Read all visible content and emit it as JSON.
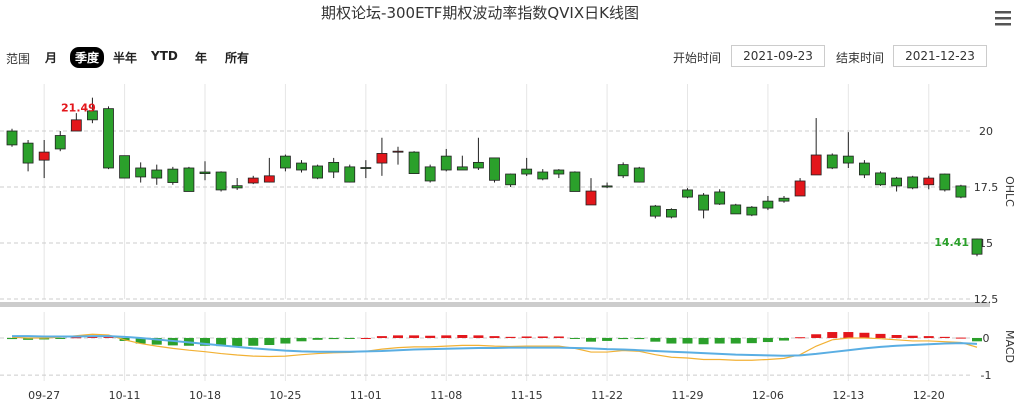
{
  "title": "期权论坛-300ETF期权波动率指数QVIX日K线图",
  "controls": {
    "range_label": "范围",
    "ranges": [
      "月",
      "季度",
      "半年",
      "YTD",
      "年",
      "所有"
    ],
    "selected": 1,
    "start_label": "开始时间",
    "start_value": "2021-09-23",
    "end_label": "结束时间",
    "end_value": "2021-12-23"
  },
  "chart_data": [
    {
      "type": "candlestick",
      "y_label": "OHLC",
      "categories": [
        null,
        null,
        "09-27",
        null,
        null,
        null,
        null,
        "10-11",
        null,
        null,
        null,
        null,
        "10-18",
        null,
        null,
        null,
        null,
        "10-25",
        null,
        null,
        null,
        null,
        "11-01",
        null,
        null,
        null,
        null,
        "11-08",
        null,
        null,
        null,
        null,
        "11-15",
        null,
        null,
        null,
        null,
        "11-22",
        null,
        null,
        null,
        null,
        "11-29",
        null,
        null,
        null,
        null,
        "12-06",
        null,
        null,
        null,
        null,
        "12-13",
        null,
        null,
        null,
        null,
        "12-20",
        null,
        null,
        null
      ],
      "open": [
        20.0,
        19.46,
        18.7,
        19.8,
        20.0,
        20.9,
        21.0,
        18.9,
        18.35,
        18.26,
        18.3,
        18.35,
        18.17,
        18.17,
        17.56,
        17.68,
        17.72,
        18.88,
        18.57,
        18.44,
        18.6,
        18.4,
        18.37,
        18.57,
        19.06,
        19.06,
        18.4,
        18.88,
        18.4,
        18.6,
        18.8,
        18.08,
        18.3,
        18.17,
        18.26,
        18.17,
        16.7,
        17.55,
        18.5,
        18.35,
        16.65,
        16.5,
        17.37,
        17.14,
        17.28,
        16.7,
        16.6,
        16.87,
        17.0,
        17.1,
        18.04,
        18.93,
        18.88,
        18.57,
        18.13,
        17.9,
        17.95,
        17.6,
        18.08,
        17.55,
        15.18
      ],
      "high": [
        20.1,
        19.6,
        19.6,
        20.0,
        20.8,
        21.49,
        21.1,
        18.9,
        18.6,
        18.5,
        18.4,
        18.4,
        18.65,
        18.2,
        17.9,
        18.0,
        18.8,
        18.95,
        18.7,
        18.5,
        18.8,
        18.5,
        18.7,
        19.7,
        19.3,
        19.1,
        18.5,
        19.2,
        18.9,
        19.7,
        18.8,
        18.1,
        18.8,
        18.3,
        18.3,
        18.2,
        17.9,
        17.7,
        18.6,
        18.4,
        16.7,
        16.55,
        17.45,
        17.23,
        17.4,
        16.75,
        16.65,
        17.1,
        17.1,
        17.9,
        20.58,
        19.0,
        19.95,
        18.7,
        18.2,
        17.95,
        18.0,
        18.0,
        18.1,
        17.6,
        15.2
      ],
      "low": [
        19.3,
        18.2,
        17.9,
        19.1,
        20.0,
        20.35,
        18.3,
        17.9,
        17.7,
        17.6,
        17.6,
        17.3,
        17.8,
        17.3,
        17.37,
        17.63,
        17.7,
        18.2,
        18.15,
        17.85,
        17.9,
        17.7,
        17.9,
        18.0,
        18.5,
        18.1,
        17.7,
        18.2,
        18.26,
        18.26,
        17.7,
        17.5,
        17.99,
        17.8,
        17.9,
        17.3,
        16.7,
        17.45,
        17.9,
        17.7,
        16.1,
        16.1,
        17.0,
        16.1,
        16.7,
        16.3,
        16.2,
        16.47,
        16.8,
        17.1,
        18.04,
        18.3,
        18.35,
        17.9,
        17.55,
        17.3,
        17.4,
        17.4,
        17.3,
        17.0,
        14.41
      ],
      "close": [
        19.38,
        18.57,
        19.06,
        19.2,
        20.5,
        20.5,
        18.35,
        17.9,
        17.95,
        17.9,
        17.7,
        17.3,
        18.1,
        17.37,
        17.46,
        17.9,
        18.0,
        18.35,
        18.26,
        17.9,
        18.17,
        17.72,
        18.35,
        19.0,
        19.1,
        18.1,
        17.77,
        18.26,
        18.26,
        18.35,
        17.8,
        17.6,
        18.08,
        17.86,
        18.08,
        17.3,
        17.32,
        17.5,
        18.0,
        17.72,
        16.2,
        16.16,
        17.05,
        16.47,
        16.74,
        16.3,
        16.25,
        16.56,
        16.87,
        17.77,
        18.93,
        18.35,
        18.57,
        18.04,
        17.6,
        17.55,
        17.46,
        17.9,
        17.37,
        17.05,
        14.5
      ],
      "up_color": "#e3161b",
      "down_color": "#2ba02b",
      "annotations": [
        "21.49",
        "14.41"
      ],
      "ylim": [
        12.5,
        22.1
      ],
      "yticks": [
        12.5,
        15,
        17.5,
        20
      ],
      "grid": true
    },
    {
      "type": "macd",
      "y_label": "MACD",
      "bars": {
        "up_color": "#e3161b",
        "down_color": "#2ba02b",
        "values": [
          -0.03,
          -0.05,
          -0.04,
          -0.02,
          0.02,
          0.05,
          0.03,
          -0.08,
          -0.15,
          -0.18,
          -0.2,
          -0.21,
          -0.21,
          -0.22,
          -0.22,
          -0.21,
          -0.19,
          -0.15,
          -0.09,
          -0.05,
          -0.03,
          -0.02,
          0.0,
          0.05,
          0.07,
          0.07,
          0.06,
          0.07,
          0.08,
          0.07,
          0.05,
          0.03,
          0.04,
          0.04,
          0.04,
          -0.01,
          -0.1,
          -0.08,
          -0.03,
          -0.03,
          -0.1,
          -0.15,
          -0.15,
          -0.17,
          -0.15,
          -0.15,
          -0.14,
          -0.11,
          -0.07,
          0.02,
          0.1,
          0.16,
          0.16,
          0.14,
          0.11,
          0.08,
          0.06,
          0.05,
          0.03,
          0.01,
          -0.09
        ]
      },
      "lines": [
        {
          "color": "#f2b134",
          "values": [
            0.02,
            0.0,
            0.0,
            0.02,
            0.06,
            0.1,
            0.08,
            -0.05,
            -0.15,
            -0.22,
            -0.28,
            -0.33,
            -0.37,
            -0.42,
            -0.46,
            -0.49,
            -0.5,
            -0.49,
            -0.45,
            -0.42,
            -0.4,
            -0.39,
            -0.36,
            -0.3,
            -0.26,
            -0.24,
            -0.24,
            -0.22,
            -0.2,
            -0.2,
            -0.22,
            -0.23,
            -0.22,
            -0.22,
            -0.22,
            -0.28,
            -0.38,
            -0.38,
            -0.34,
            -0.36,
            -0.45,
            -0.52,
            -0.54,
            -0.58,
            -0.58,
            -0.6,
            -0.6,
            -0.58,
            -0.55,
            -0.45,
            -0.22,
            -0.05,
            0.0,
            0.0,
            -0.02,
            -0.05,
            -0.08,
            -0.08,
            -0.1,
            -0.12,
            -0.25
          ]
        },
        {
          "color": "#5aaee3",
          "values": [
            0.05,
            0.05,
            0.04,
            0.04,
            0.04,
            0.05,
            0.05,
            0.03,
            0.0,
            -0.04,
            -0.08,
            -0.12,
            -0.16,
            -0.2,
            -0.24,
            -0.28,
            -0.31,
            -0.34,
            -0.36,
            -0.37,
            -0.37,
            -0.37,
            -0.36,
            -0.35,
            -0.33,
            -0.31,
            -0.3,
            -0.29,
            -0.28,
            -0.27,
            -0.27,
            -0.26,
            -0.26,
            -0.26,
            -0.26,
            -0.27,
            -0.28,
            -0.3,
            -0.31,
            -0.33,
            -0.35,
            -0.37,
            -0.39,
            -0.41,
            -0.43,
            -0.45,
            -0.46,
            -0.47,
            -0.48,
            -0.47,
            -0.43,
            -0.38,
            -0.33,
            -0.28,
            -0.24,
            -0.21,
            -0.19,
            -0.17,
            -0.15,
            -0.14,
            -0.16
          ]
        }
      ],
      "ylim": [
        -1.16,
        0.7
      ],
      "yticks": [
        -1,
        0
      ]
    }
  ]
}
